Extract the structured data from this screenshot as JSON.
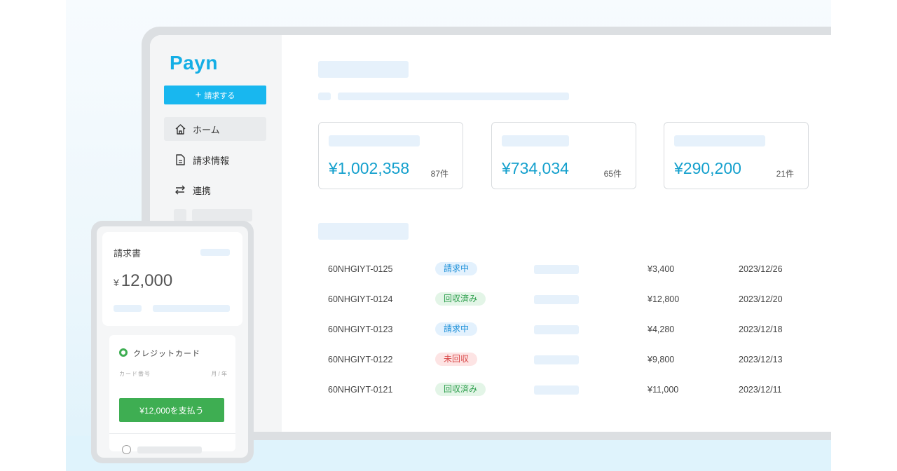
{
  "brand": {
    "logo": "Payn"
  },
  "sidebar": {
    "invoice_button": {
      "icon": "plus-icon",
      "label": "請求する"
    },
    "items": [
      {
        "icon": "home-icon",
        "label": "ホーム",
        "active": true
      },
      {
        "icon": "document-icon",
        "label": "請求情報"
      },
      {
        "icon": "swap-arrows-icon",
        "label": "連携"
      }
    ]
  },
  "summary_cards": [
    {
      "amount": "¥1,002,358",
      "count": "87件"
    },
    {
      "amount": "¥734,034",
      "count": "65件"
    },
    {
      "amount": "¥290,200",
      "count": "21件"
    }
  ],
  "invoices": [
    {
      "id": "60NHGIYT-0125",
      "status": "請求中",
      "status_color": "#1a8fd8",
      "amount": "¥3,400",
      "date": "2023/12/26"
    },
    {
      "id": "60NHGIYT-0124",
      "status": "回収済み",
      "status_color": "#2a9d4a",
      "amount": "¥12,800",
      "date": "2023/12/20"
    },
    {
      "id": "60NHGIYT-0123",
      "status": "請求中",
      "status_color": "#1a8fd8",
      "amount": "¥4,280",
      "date": "2023/12/18"
    },
    {
      "id": "60NHGIYT-0122",
      "status": "未回収",
      "status_color": "#d94848",
      "amount": "¥9,800",
      "date": "2023/12/13"
    },
    {
      "id": "60NHGIYT-0121",
      "status": "回収済み",
      "status_color": "#2a9d4a",
      "amount": "¥11,000",
      "date": "2023/12/11"
    }
  ],
  "phone": {
    "title": "請求書",
    "currency": "¥",
    "amount": "12,000",
    "payment_method": "クレジットカード",
    "card_number_label": "カード番号",
    "expiry_label": "月 / 年",
    "pay_button": "¥12,000を支払う"
  },
  "colors": {
    "accent": "#18b7ef",
    "amount_text": "#14a0cd",
    "pay_green": "#3eae52"
  }
}
